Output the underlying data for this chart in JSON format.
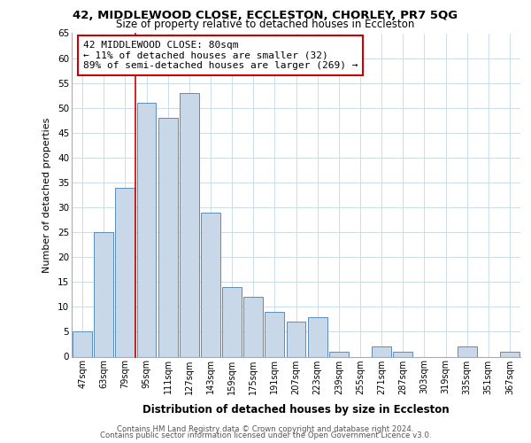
{
  "title1": "42, MIDDLEWOOD CLOSE, ECCLESTON, CHORLEY, PR7 5QG",
  "title2": "Size of property relative to detached houses in Eccleston",
  "xlabel": "Distribution of detached houses by size in Eccleston",
  "ylabel": "Number of detached properties",
  "bar_labels": [
    "47sqm",
    "63sqm",
    "79sqm",
    "95sqm",
    "111sqm",
    "127sqm",
    "143sqm",
    "159sqm",
    "175sqm",
    "191sqm",
    "207sqm",
    "223sqm",
    "239sqm",
    "255sqm",
    "271sqm",
    "287sqm",
    "303sqm",
    "319sqm",
    "335sqm",
    "351sqm",
    "367sqm"
  ],
  "bar_values": [
    5,
    25,
    34,
    51,
    48,
    53,
    29,
    14,
    12,
    9,
    7,
    8,
    1,
    0,
    2,
    1,
    0,
    0,
    2,
    0,
    1
  ],
  "bar_color": "#c8d8e8",
  "bar_edge_color": "#5b8db8",
  "redline_color": "#cc0000",
  "annotation_text": "42 MIDDLEWOOD CLOSE: 80sqm\n← 11% of detached houses are smaller (32)\n89% of semi-detached houses are larger (269) →",
  "annotation_box_edge": "#cc0000",
  "ylim": [
    0,
    65
  ],
  "yticks": [
    0,
    5,
    10,
    15,
    20,
    25,
    30,
    35,
    40,
    45,
    50,
    55,
    60,
    65
  ],
  "footer1": "Contains HM Land Registry data © Crown copyright and database right 2024.",
  "footer2": "Contains public sector information licensed under the Open Government Licence v3.0.",
  "bg_color": "#ffffff",
  "grid_color": "#ccdde8"
}
